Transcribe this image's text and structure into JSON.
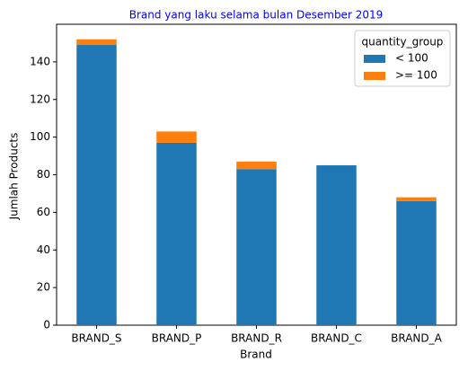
{
  "chart_data": {
    "type": "stacked_bar",
    "title": "Brand yang laku selama bulan Desember 2019",
    "title_color": "#0000ff",
    "xlabel": "Brand",
    "ylabel": "Jumlah Products",
    "categories": [
      "BRAND_S",
      "BRAND_P",
      "BRAND_R",
      "BRAND_C",
      "BRAND_A"
    ],
    "series": [
      {
        "name": "< 100",
        "color": "#1f77b4",
        "values": [
          149,
          97,
          83,
          85,
          66
        ]
      },
      {
        "name": ">= 100",
        "color": "#ff7f0e",
        "values": [
          3,
          6,
          4,
          0,
          2
        ]
      }
    ],
    "legend_title": "quantity_group",
    "legend": "upper right",
    "ylim": [
      0,
      160
    ],
    "yticks": [
      0,
      20,
      40,
      60,
      80,
      100,
      120,
      140
    ]
  }
}
